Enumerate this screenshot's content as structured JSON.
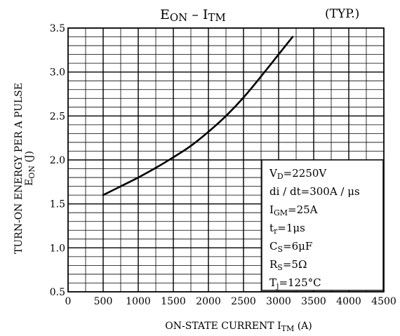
{
  "chart_data": {
    "type": "line",
    "title_main": "E",
    "title_main_sub": "ON",
    "title_dash": "–",
    "title_i": "I",
    "title_i_sub": "TM",
    "title_typ": "(TYP.)",
    "ylabel_line1": "TURN-ON ENERGY PER A PULSE",
    "ylabel_sym": "E",
    "ylabel_sym_sub": "ON",
    "ylabel_unit": "(J)",
    "xlabel_text": "ON-STATE CURRENT",
    "xlabel_sym": "I",
    "xlabel_sym_sub": "TM",
    "xlabel_unit": "(A)",
    "xlim": [
      0,
      4500
    ],
    "ylim": [
      0.5,
      3.5
    ],
    "x_ticks": [
      0,
      500,
      1000,
      1500,
      2000,
      2500,
      3000,
      3500,
      4000,
      4500
    ],
    "x_tick_labels": [
      "0",
      "500",
      "1000",
      "1500",
      "2000",
      "2500",
      "3000",
      "3500",
      "4000",
      "4500"
    ],
    "y_ticks": [
      0.5,
      1.0,
      1.5,
      2.0,
      2.5,
      3.0,
      3.5
    ],
    "y_tick_labels": [
      "0.5",
      "1.0",
      "1.5",
      "2.0",
      "2.5",
      "3.0",
      "3.5"
    ],
    "grid": true,
    "series": [
      {
        "x": [
          500,
          750,
          1000,
          1250,
          1500,
          1750,
          2000,
          2250,
          2500,
          2750,
          3000,
          3200
        ],
        "y": [
          1.6,
          1.7,
          1.8,
          1.91,
          2.03,
          2.16,
          2.32,
          2.5,
          2.71,
          2.95,
          3.2,
          3.4
        ]
      }
    ],
    "conditions": [
      {
        "main": "V",
        "sub": "D",
        "rest": "=2250V"
      },
      {
        "main": "di / dt=300A / μs",
        "sub": "",
        "rest": ""
      },
      {
        "main": "I",
        "sub": "GM",
        "rest": "=25A"
      },
      {
        "main": "t",
        "sub": "r",
        "rest": "=1μs"
      },
      {
        "main": "C",
        "sub": "S",
        "rest": "=6μF"
      },
      {
        "main": "R",
        "sub": "S",
        "rest": "=5Ω"
      },
      {
        "main": "T",
        "sub": "j",
        "rest": "=125°C"
      }
    ]
  }
}
